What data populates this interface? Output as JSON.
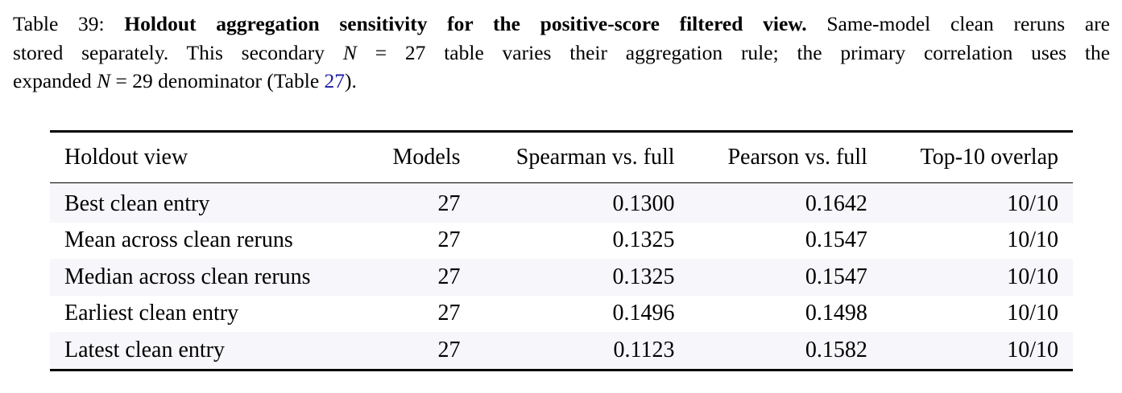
{
  "caption": {
    "label": "Table 39:",
    "title": "Holdout aggregation sensitivity for the positive-score filtered view.",
    "line1_rest": "Same-model clean reruns are",
    "line2_a": "stored separately. This secondary",
    "n_symbol": "N",
    "equals": "=",
    "n_secondary": "27",
    "line2_b": "table varies their aggregation rule; the primary correlation uses the",
    "line3_a": "expanded",
    "n_primary": "29",
    "line3_b": "denominator (Table",
    "table_ref": "27",
    "line3_end": ")."
  },
  "table": {
    "headers": [
      "Holdout view",
      "Models",
      "Spearman vs. full",
      "Pearson vs. full",
      "Top-10 overlap"
    ],
    "rows": [
      {
        "view": "Best clean entry",
        "models": "27",
        "spearman": "0.1300",
        "pearson": "0.1642",
        "overlap": "10/10"
      },
      {
        "view": "Mean across clean reruns",
        "models": "27",
        "spearman": "0.1325",
        "pearson": "0.1547",
        "overlap": "10/10"
      },
      {
        "view": "Median across clean reruns",
        "models": "27",
        "spearman": "0.1325",
        "pearson": "0.1547",
        "overlap": "10/10"
      },
      {
        "view": "Earliest clean entry",
        "models": "27",
        "spearman": "0.1496",
        "pearson": "0.1498",
        "overlap": "10/10"
      },
      {
        "view": "Latest clean entry",
        "models": "27",
        "spearman": "0.1123",
        "pearson": "0.1582",
        "overlap": "10/10"
      }
    ]
  },
  "colors": {
    "row_shade": "#f6f6fb",
    "link": "#1a1aa6"
  }
}
